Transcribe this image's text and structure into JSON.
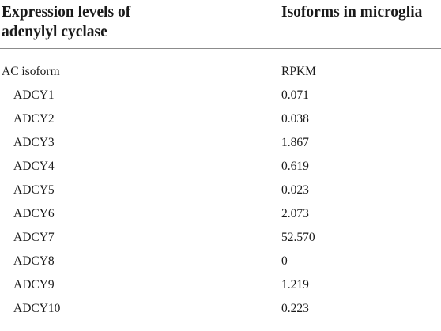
{
  "header": {
    "left_line1": "Expression levels of",
    "left_line2": "adenylyl cyclase",
    "right": "Isoforms in microglia"
  },
  "subheader": {
    "name": "AC isoform",
    "value": "RPKM"
  },
  "rows": [
    {
      "name": "ADCY1",
      "value": "0.071"
    },
    {
      "name": "ADCY2",
      "value": "0.038"
    },
    {
      "name": "ADCY3",
      "value": "1.867"
    },
    {
      "name": "ADCY4",
      "value": "0.619"
    },
    {
      "name": "ADCY5",
      "value": "0.023"
    },
    {
      "name": "ADCY6",
      "value": "2.073"
    },
    {
      "name": "ADCY7",
      "value": "52.570"
    },
    {
      "name": "ADCY8",
      "value": "0"
    },
    {
      "name": "ADCY9",
      "value": "1.219"
    },
    {
      "name": "ADCY10",
      "value": "0.223"
    }
  ]
}
